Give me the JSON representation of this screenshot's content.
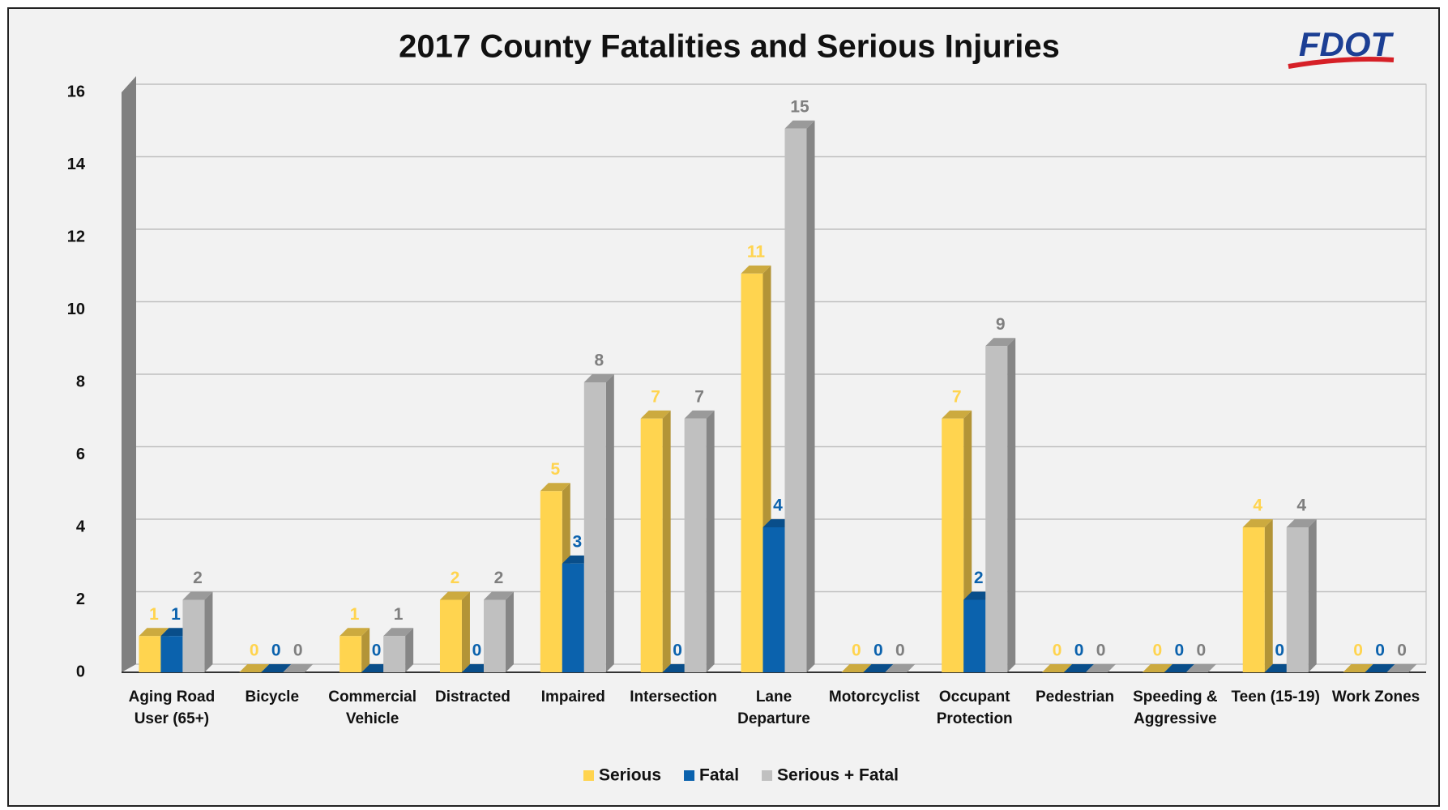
{
  "logo": "FDOT",
  "chart_data": {
    "type": "bar3d",
    "title": "2017 County Fatalities and Serious Injuries",
    "categories": [
      "Aging Road User (65+)",
      "Bicycle",
      "Commercial Vehicle",
      "Distracted",
      "Impaired",
      "Intersection",
      "Lane Departure",
      "Motorcyclist",
      "Occupant Protection",
      "Pedestrian",
      "Speeding & Aggressive",
      "Teen (15-19)",
      "Work Zones"
    ],
    "series": [
      {
        "name": "Serious",
        "color": "#ffd44f",
        "values": [
          1,
          0,
          1,
          2,
          5,
          7,
          11,
          0,
          7,
          0,
          0,
          4,
          0
        ]
      },
      {
        "name": "Fatal",
        "color": "#0b62ad",
        "values": [
          1,
          0,
          0,
          0,
          3,
          0,
          4,
          0,
          2,
          0,
          0,
          0,
          0
        ]
      },
      {
        "name": "Serious + Fatal",
        "color": "#c0c0c0",
        "values": [
          2,
          0,
          1,
          2,
          8,
          7,
          15,
          0,
          9,
          0,
          0,
          4,
          0
        ]
      }
    ],
    "ylim": [
      0,
      16
    ],
    "yticks": [
      0,
      2,
      4,
      6,
      8,
      10,
      12,
      14,
      16
    ],
    "grid": true,
    "legend": "bottom"
  }
}
